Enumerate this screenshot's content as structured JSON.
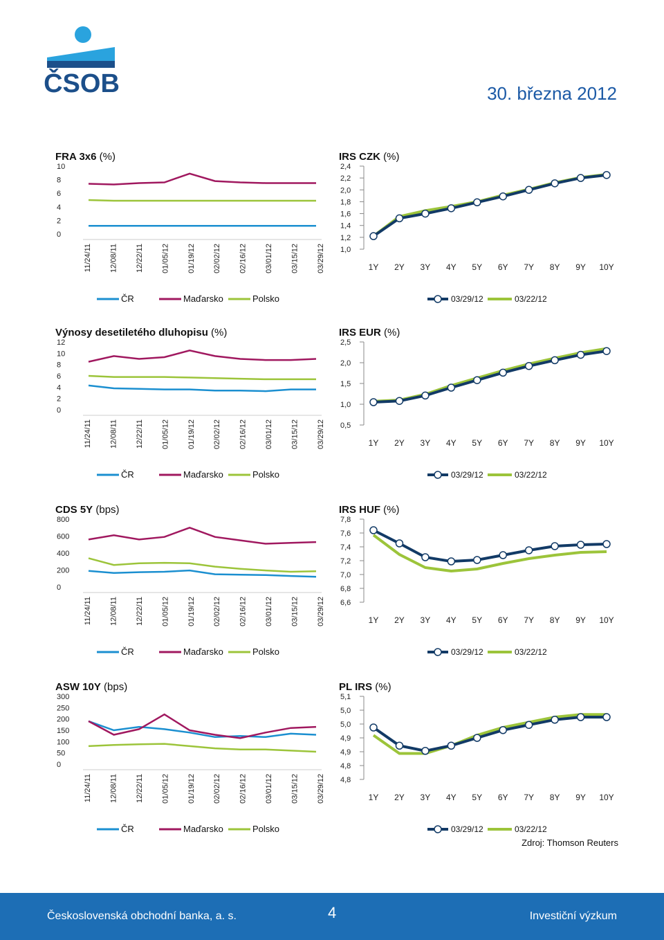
{
  "header": {
    "logo_text": "ČSOB",
    "date": "30. března 2012"
  },
  "colors": {
    "cr": "#1b8fd0",
    "hu": "#a0185f",
    "pl": "#9cc43a",
    "curve_now": "#123a66",
    "curve_prev": "#9cc43a",
    "logo_blue": "#1c4f8a",
    "logo_sky": "#2aa3de",
    "footer": "#1d6eb5"
  },
  "series_legend": [
    "ČR",
    "Maďarsko",
    "Polsko"
  ],
  "dates": [
    "11/24/11",
    "12/08/11",
    "12/22/11",
    "01/05/12",
    "01/19/12",
    "02/02/12",
    "02/16/12",
    "03/01/12",
    "03/15/12",
    "03/29/12"
  ],
  "curve_legend": [
    "03/29/12",
    "03/22/12"
  ],
  "tenors": [
    "1Y",
    "2Y",
    "3Y",
    "4Y",
    "5Y",
    "6Y",
    "7Y",
    "8Y",
    "9Y",
    "10Y"
  ],
  "chart_data": [
    {
      "id": "fra",
      "type": "line",
      "title_bold": "FRA 3x6",
      "title_unit": " (%)",
      "yticks": [
        "10",
        "8",
        "6",
        "4",
        "2",
        "0"
      ],
      "ylim": [
        0,
        10
      ],
      "xlabel": "",
      "ylabel": "",
      "series": [
        {
          "name": "ČR",
          "values": [
            1.2,
            1.2,
            1.2,
            1.2,
            1.2,
            1.2,
            1.2,
            1.2,
            1.2,
            1.2
          ]
        },
        {
          "name": "Maďarsko",
          "values": [
            7.4,
            7.3,
            7.5,
            7.6,
            8.9,
            7.8,
            7.6,
            7.5,
            7.5,
            7.5
          ]
        },
        {
          "name": "Polsko",
          "values": [
            5.0,
            4.9,
            4.9,
            4.9,
            4.9,
            4.9,
            4.9,
            4.9,
            4.9,
            4.9
          ]
        }
      ]
    },
    {
      "id": "bond10",
      "type": "line",
      "title_bold": "Výnosy desetiletého dluhopisu",
      "title_unit": " (%)",
      "yticks": [
        "12",
        "10",
        "8",
        "6",
        "4",
        "2",
        "0"
      ],
      "ylim": [
        0,
        12
      ],
      "xlabel": "",
      "ylabel": "",
      "series": [
        {
          "name": "ČR",
          "values": [
            4.3,
            3.8,
            3.7,
            3.6,
            3.6,
            3.4,
            3.4,
            3.3,
            3.6,
            3.6
          ]
        },
        {
          "name": "Maďarsko",
          "values": [
            8.5,
            9.5,
            9.0,
            9.3,
            10.5,
            9.5,
            9.0,
            8.8,
            8.8,
            9.0
          ]
        },
        {
          "name": "Polsko",
          "values": [
            6.0,
            5.8,
            5.8,
            5.8,
            5.7,
            5.6,
            5.5,
            5.4,
            5.4,
            5.4
          ]
        }
      ]
    },
    {
      "id": "cds",
      "type": "line",
      "title_bold": "CDS 5Y",
      "title_unit": " (bps)",
      "yticks": [
        "800",
        "600",
        "400",
        "200",
        "0"
      ],
      "ylim": [
        0,
        800
      ],
      "xlabel": "",
      "ylabel": "",
      "series": [
        {
          "name": "ČR",
          "values": [
            190,
            165,
            175,
            180,
            195,
            150,
            145,
            140,
            130,
            120
          ]
        },
        {
          "name": "Maďarsko",
          "values": [
            560,
            610,
            560,
            590,
            700,
            590,
            550,
            510,
            520,
            530
          ]
        },
        {
          "name": "Polsko",
          "values": [
            340,
            260,
            280,
            285,
            280,
            240,
            215,
            195,
            180,
            185
          ]
        }
      ]
    },
    {
      "id": "asw",
      "type": "line",
      "title_bold": "ASW 10Y",
      "title_unit": " (bps)",
      "yticks": [
        "300",
        "250",
        "200",
        "150",
        "100",
        "50",
        "0"
      ],
      "ylim": [
        0,
        300
      ],
      "xlabel": "",
      "ylabel": "",
      "series": [
        {
          "name": "ČR",
          "values": [
            190,
            150,
            165,
            155,
            140,
            120,
            125,
            120,
            135,
            130
          ]
        },
        {
          "name": "Maďarsko",
          "values": [
            190,
            130,
            155,
            220,
            150,
            130,
            115,
            140,
            160,
            165
          ]
        },
        {
          "name": "Polsko",
          "values": [
            80,
            85,
            88,
            90,
            80,
            70,
            65,
            65,
            60,
            55
          ]
        }
      ]
    },
    {
      "id": "irs_czk",
      "type": "line",
      "title_bold": "IRS CZK",
      "title_unit": " (%)",
      "yticks": [
        "2,4",
        "2,2",
        "2,0",
        "1,8",
        "1,6",
        "1,4",
        "1,2",
        "1,0"
      ],
      "ylim": [
        1.0,
        2.4
      ],
      "xlabel": "",
      "ylabel": "",
      "series": [
        {
          "name": "03/29/12",
          "values": [
            1.22,
            1.52,
            1.6,
            1.69,
            1.79,
            1.89,
            2.0,
            2.11,
            2.2,
            2.25
          ]
        },
        {
          "name": "03/22/12",
          "values": [
            1.22,
            1.55,
            1.65,
            1.72,
            1.8,
            1.91,
            2.01,
            2.12,
            2.21,
            2.26
          ]
        }
      ]
    },
    {
      "id": "irs_eur",
      "type": "line",
      "title_bold": "IRS EUR",
      "title_unit": " (%)",
      "yticks": [
        "2,5",
        "2,0",
        "1,5",
        "1,0",
        "0,5"
      ],
      "ylim": [
        0.5,
        2.5
      ],
      "xlabel": "",
      "ylabel": "",
      "series": [
        {
          "name": "03/29/12",
          "values": [
            1.05,
            1.08,
            1.21,
            1.4,
            1.58,
            1.76,
            1.92,
            2.06,
            2.19,
            2.28
          ]
        },
        {
          "name": "03/22/12",
          "values": [
            1.07,
            1.1,
            1.24,
            1.45,
            1.63,
            1.81,
            1.97,
            2.11,
            2.24,
            2.34
          ]
        }
      ]
    },
    {
      "id": "irs_huf",
      "type": "line",
      "title_bold": "IRS HUF",
      "title_unit": " (%)",
      "yticks": [
        "7,8",
        "7,6",
        "7,4",
        "7,2",
        "7,0",
        "6,8",
        "6,6"
      ],
      "ylim": [
        6.6,
        7.8
      ],
      "xlabel": "",
      "ylabel": "",
      "series": [
        {
          "name": "03/29/12",
          "values": [
            7.64,
            7.45,
            7.25,
            7.19,
            7.21,
            7.28,
            7.35,
            7.41,
            7.43,
            7.44
          ]
        },
        {
          "name": "03/22/12",
          "values": [
            7.57,
            7.29,
            7.1,
            7.05,
            7.08,
            7.16,
            7.23,
            7.28,
            7.32,
            7.33
          ]
        }
      ]
    },
    {
      "id": "pl_irs",
      "type": "line",
      "title_bold": "PL IRS",
      "title_unit": " (%)",
      "yticks": [
        "5,1",
        "5,0",
        "5,0",
        "4,9",
        "4,9",
        "4,8",
        "4,8"
      ],
      "ylim": [
        4.78,
        5.1
      ],
      "xlabel": "",
      "ylabel": "",
      "series": [
        {
          "name": "03/29/12",
          "values": [
            4.98,
            4.91,
            4.89,
            4.91,
            4.94,
            4.97,
            4.99,
            5.01,
            5.02,
            5.02
          ]
        },
        {
          "name": "03/22/12",
          "values": [
            4.95,
            4.88,
            4.88,
            4.91,
            4.95,
            4.98,
            5.0,
            5.02,
            5.03,
            5.03
          ]
        }
      ]
    }
  ],
  "source": "Zdroj: Thomson Reuters",
  "footer": {
    "bank": "Československá obchodní banka, a. s.",
    "page": "4",
    "department": "Investiční výzkum"
  }
}
